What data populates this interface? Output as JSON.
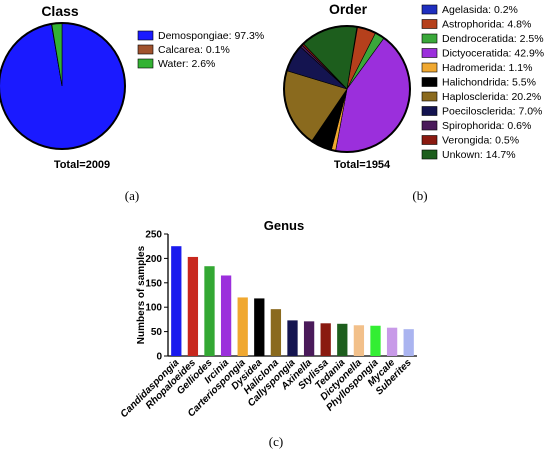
{
  "chart_data": [
    {
      "type": "pie",
      "title": "Class",
      "panel_label": "(a)",
      "total_label": "Total=2009",
      "slices": [
        {
          "label": "Demospongiae: 97.3%",
          "value": 97.3,
          "color": "#1a1aff"
        },
        {
          "label": "Calcarea: 0.1%",
          "value": 0.1,
          "color": "#a0522d"
        },
        {
          "label": "Water: 2.6%",
          "value": 2.6,
          "color": "#33b233"
        }
      ],
      "legend_position": "right"
    },
    {
      "type": "pie",
      "title": "Order",
      "panel_label": "(b)",
      "total_label": "Total=1954",
      "slices": [
        {
          "label": "Agelasida: 0.2%",
          "value": 0.2,
          "color": "#1f2fbf"
        },
        {
          "label": "Astrophorida: 4.8%",
          "value": 4.8,
          "color": "#b5401c"
        },
        {
          "label": "Dendroceratida: 2.5%",
          "value": 2.5,
          "color": "#3aa83a"
        },
        {
          "label": "Dictyoceratida: 42.9%",
          "value": 42.9,
          "color": "#9b2fdc"
        },
        {
          "label": "Hadromerida: 1.1%",
          "value": 1.1,
          "color": "#f0a830"
        },
        {
          "label": "Halichondrida: 5.5%",
          "value": 5.5,
          "color": "#000000"
        },
        {
          "label": "Haplosclerida: 20.2%",
          "value": 20.2,
          "color": "#8a6a1e"
        },
        {
          "label": "Poecilosclerida: 7.0%",
          "value": 7.0,
          "color": "#141450"
        },
        {
          "label": "Spirophorida: 0.6%",
          "value": 0.6,
          "color": "#4a1a5a"
        },
        {
          "label": "Verongida: 0.5%",
          "value": 0.5,
          "color": "#8a1a10"
        },
        {
          "label": "Unkown: 14.7%",
          "value": 14.7,
          "color": "#1d5e1d"
        }
      ],
      "legend_position": "right"
    },
    {
      "type": "bar",
      "title": "Genus",
      "panel_label": "(c)",
      "ylabel": "Numbers of samples",
      "xlabel": "",
      "ylim": [
        0,
        250
      ],
      "yticks": [
        0,
        50,
        100,
        150,
        200,
        250
      ],
      "categories": [
        "Candidaspongia",
        "Rhopaloeides",
        "Gelliodes",
        "Ircinia",
        "Carteriospongia",
        "Dysidea",
        "Haliclona",
        "Callyspongia",
        "Axinella",
        "Stylissa",
        "Tedania",
        "Dictyonella",
        "Phyllospongia",
        "Mycale",
        "Suberites"
      ],
      "values": [
        225,
        203,
        184,
        165,
        120,
        118,
        96,
        73,
        71,
        67,
        66,
        63,
        62,
        58,
        55
      ],
      "colors": [
        "#1a1aee",
        "#c8281e",
        "#33a833",
        "#9b2fdc",
        "#f0a830",
        "#000000",
        "#8a6a1e",
        "#141450",
        "#4a1a5a",
        "#8a1a10",
        "#1d5e1d",
        "#f2c08a",
        "#33ee33",
        "#c89ae8",
        "#aab4f0"
      ],
      "legend_position": "none"
    }
  ]
}
